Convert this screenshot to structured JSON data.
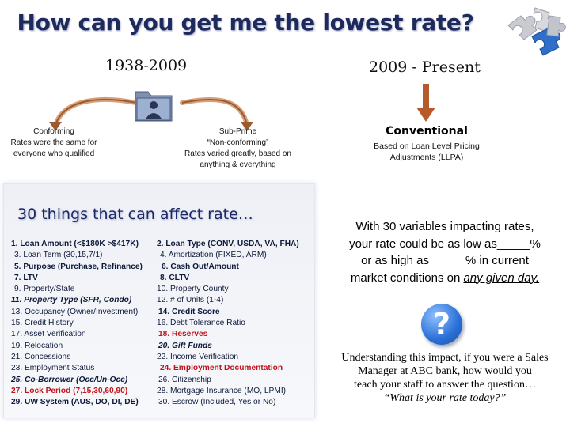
{
  "title": "How can you get me the lowest rate?",
  "eras": {
    "left": "1938-2009",
    "right": "2009 - Present"
  },
  "conforming": {
    "title": "Conforming",
    "desc": "Rates were the same for everyone who qualified"
  },
  "subprime": {
    "title": "Sub-Prime",
    "subtitle": "“Non-conforming”",
    "desc": "Rates varied greatly, based on anything & everything"
  },
  "conventional": {
    "title": "Conventional",
    "desc": "Based on Loan Level Pricing Adjustments (LLPA)"
  },
  "factors": {
    "heading": "30 things that can affect rate…",
    "left": [
      "1. Loan Amount (<$180K >$417K)",
      "3. Loan Term (30,15,7/1)",
      "5. Purpose (Purchase, Refinance)",
      "7. LTV",
      "9. Property/State",
      "11. Property Type (SFR, Condo)",
      "13. Occupancy (Owner/Investment)",
      "15. Credit History",
      "17. Asset Verification",
      "19. Relocation",
      "21. Concessions",
      "23. Employment Status",
      "25. Co-Borrower (Occ/Un-Occ)",
      "27. Lock Period (7,15,30,60,90)",
      "29. UW System (AUS, DO, DI, DE)"
    ],
    "right": [
      "2. Loan Type (CONV, USDA, VA, FHA)",
      "4. Amortization (FIXED, ARM)",
      "6. Cash Out/Amount",
      "8. CLTV",
      "10. Property County",
      "12. # of Units (1-4)",
      "14. Credit Score",
      "16. Debt Tolerance Ratio",
      "18. Reserves",
      "20. Gift Funds",
      "22. Income Verification",
      "24. Employment Documentation",
      "26. Citizenship",
      "28. Mortgage Insurance (MO, LPMI)",
      "30. Escrow (Included, Yes or No)"
    ]
  },
  "statement": {
    "line1": "With 30 variables impacting rates,",
    "line2": "your rate could be as low as_____%",
    "line3": "or as high as _____% in current",
    "line4_pre": "market conditions on ",
    "line4_em": "any given day."
  },
  "question_mark": "?",
  "closing": {
    "lines": [
      "Understanding this impact, if you were a Sales",
      "Manager at ABC bank, how would you",
      "teach your staff to answer the question…"
    ],
    "quote": "“What is your rate today?”"
  },
  "icons": [
    "puzzle-pieces-icon",
    "person-folder-icon",
    "question-mark-icon"
  ]
}
